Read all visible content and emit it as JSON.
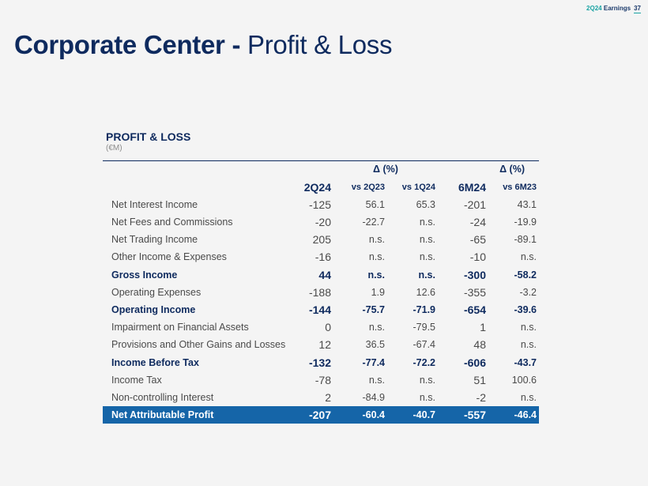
{
  "header": {
    "report": "2Q24 Earnings",
    "report_period": "2Q24",
    "report_word": "Earnings",
    "page": "37"
  },
  "title": {
    "bold": "Corporate Center -",
    "normal": "Profit & Loss"
  },
  "section": {
    "heading": "PROFIT & LOSS",
    "unit": "(€M)"
  },
  "columns": {
    "delta_label_1": "Δ (%)",
    "delta_label_2": "Δ (%)",
    "col1": "2Q24",
    "col2": "vs 2Q23",
    "col3": "vs 1Q24",
    "col4": "6M24",
    "col5": "vs 6M23"
  },
  "rows": [
    {
      "label": "Net Interest Income",
      "v1": "-125",
      "v2": "56.1",
      "v3": "65.3",
      "v4": "-201",
      "v5": "43.1"
    },
    {
      "label": "Net Fees and Commissions",
      "v1": "-20",
      "v2": "-22.7",
      "v3": "n.s.",
      "v4": "-24",
      "v5": "-19.9"
    },
    {
      "label": "Net Trading Income",
      "v1": "205",
      "v2": "n.s.",
      "v3": "n.s.",
      "v4": "-65",
      "v5": "-89.1"
    },
    {
      "label": "Other Income & Expenses",
      "v1": "-16",
      "v2": "n.s.",
      "v3": "n.s.",
      "v4": "-10",
      "v5": "n.s."
    },
    {
      "label": "Gross Income",
      "v1": "44",
      "v2": "n.s.",
      "v3": "n.s.",
      "v4": "-300",
      "v5": "-58.2"
    },
    {
      "label": "Operating Expenses",
      "v1": "-188",
      "v2": "1.9",
      "v3": "12.6",
      "v4": "-355",
      "v5": "-3.2"
    },
    {
      "label": "Operating Income",
      "v1": "-144",
      "v2": "-75.7",
      "v3": "-71.9",
      "v4": "-654",
      "v5": "-39.6"
    },
    {
      "label": "Impairment on Financial Assets",
      "v1": "0",
      "v2": "n.s.",
      "v3": "-79.5",
      "v4": "1",
      "v5": "n.s."
    },
    {
      "label": "Provisions and Other Gains and Losses",
      "v1": "12",
      "v2": "36.5",
      "v3": "-67.4",
      "v4": "48",
      "v5": "n.s."
    },
    {
      "label": "Income Before Tax",
      "v1": "-132",
      "v2": "-77.4",
      "v3": "-72.2",
      "v4": "-606",
      "v5": "-43.7"
    },
    {
      "label": "Income Tax",
      "v1": "-78",
      "v2": "n.s.",
      "v3": "n.s.",
      "v4": "51",
      "v5": "100.6"
    },
    {
      "label": "Non-controlling Interest",
      "v1": "2",
      "v2": "-84.9",
      "v3": "n.s.",
      "v4": "-2",
      "v5": "n.s."
    },
    {
      "label": "Net Attributable Profit",
      "v1": "-207",
      "v2": "-60.4",
      "v3": "-40.7",
      "v4": "-557",
      "v5": "-46.4"
    }
  ],
  "colors": {
    "navy": "#0e2a5e",
    "teal": "#1aa3a3",
    "total_bg": "#1565a8"
  }
}
